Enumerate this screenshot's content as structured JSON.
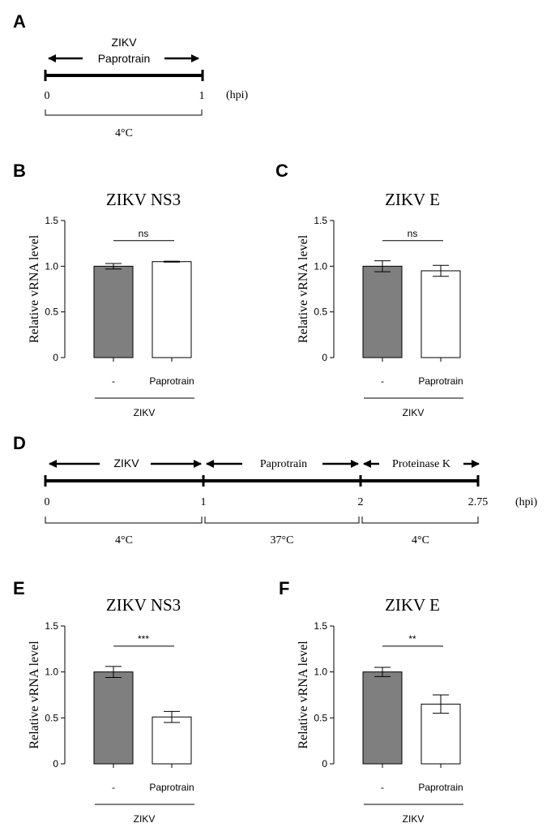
{
  "panels": {
    "A": {
      "label": "A",
      "arrow_text": [
        "ZIKV",
        "Paprotrain"
      ],
      "ticks": [
        "0",
        "1"
      ],
      "unit": "(hpi)",
      "brackets": [
        "4°C"
      ]
    },
    "D": {
      "label": "D",
      "arrow_text": [
        "ZIKV",
        "Paprotrain",
        "Proteinase K"
      ],
      "ticks": [
        "0",
        "1",
        "2",
        "2.75"
      ],
      "unit": "(hpi)",
      "brackets": [
        "4°C",
        "37°C",
        "4°C"
      ]
    }
  },
  "chart_data": [
    {
      "panel": "B",
      "type": "bar",
      "title": "ZIKV NS3",
      "ylabel": "Relative vRNA level",
      "ylim": [
        0,
        1.5
      ],
      "yticks": [
        "0",
        "0.5",
        "1.0",
        "1.5"
      ],
      "categories": [
        "-",
        "Paprotrain"
      ],
      "group_label": "ZIKV",
      "values": [
        1.0,
        1.05
      ],
      "errors": [
        0.03,
        0.005
      ],
      "bar_colors": [
        "#7f7f7f",
        "#ffffff"
      ],
      "significance": "ns"
    },
    {
      "panel": "C",
      "type": "bar",
      "title": "ZIKV E",
      "ylabel": "Relative vRNA level",
      "ylim": [
        0,
        1.5
      ],
      "yticks": [
        "0",
        "0.5",
        "1.0",
        "1.5"
      ],
      "categories": [
        "-",
        "Paprotrain"
      ],
      "group_label": "ZIKV",
      "values": [
        1.0,
        0.95
      ],
      "errors": [
        0.06,
        0.06
      ],
      "bar_colors": [
        "#7f7f7f",
        "#ffffff"
      ],
      "significance": "ns"
    },
    {
      "panel": "E",
      "type": "bar",
      "title": "ZIKV NS3",
      "ylabel": "Relative vRNA level",
      "ylim": [
        0,
        1.5
      ],
      "yticks": [
        "0",
        "0.5",
        "1.0",
        "1.5"
      ],
      "categories": [
        "-",
        "Paprotrain"
      ],
      "group_label": "ZIKV",
      "values": [
        1.0,
        0.51
      ],
      "errors": [
        0.06,
        0.06
      ],
      "bar_colors": [
        "#7f7f7f",
        "#ffffff"
      ],
      "significance": "***"
    },
    {
      "panel": "F",
      "type": "bar",
      "title": "ZIKV E",
      "ylabel": "Relative vRNA level",
      "ylim": [
        0,
        1.5
      ],
      "yticks": [
        "0",
        "0.5",
        "1.0",
        "1.5"
      ],
      "categories": [
        "-",
        "Paprotrain"
      ],
      "group_label": "ZIKV",
      "values": [
        1.0,
        0.65
      ],
      "errors": [
        0.05,
        0.1
      ],
      "bar_colors": [
        "#7f7f7f",
        "#ffffff"
      ],
      "significance": "**"
    }
  ]
}
